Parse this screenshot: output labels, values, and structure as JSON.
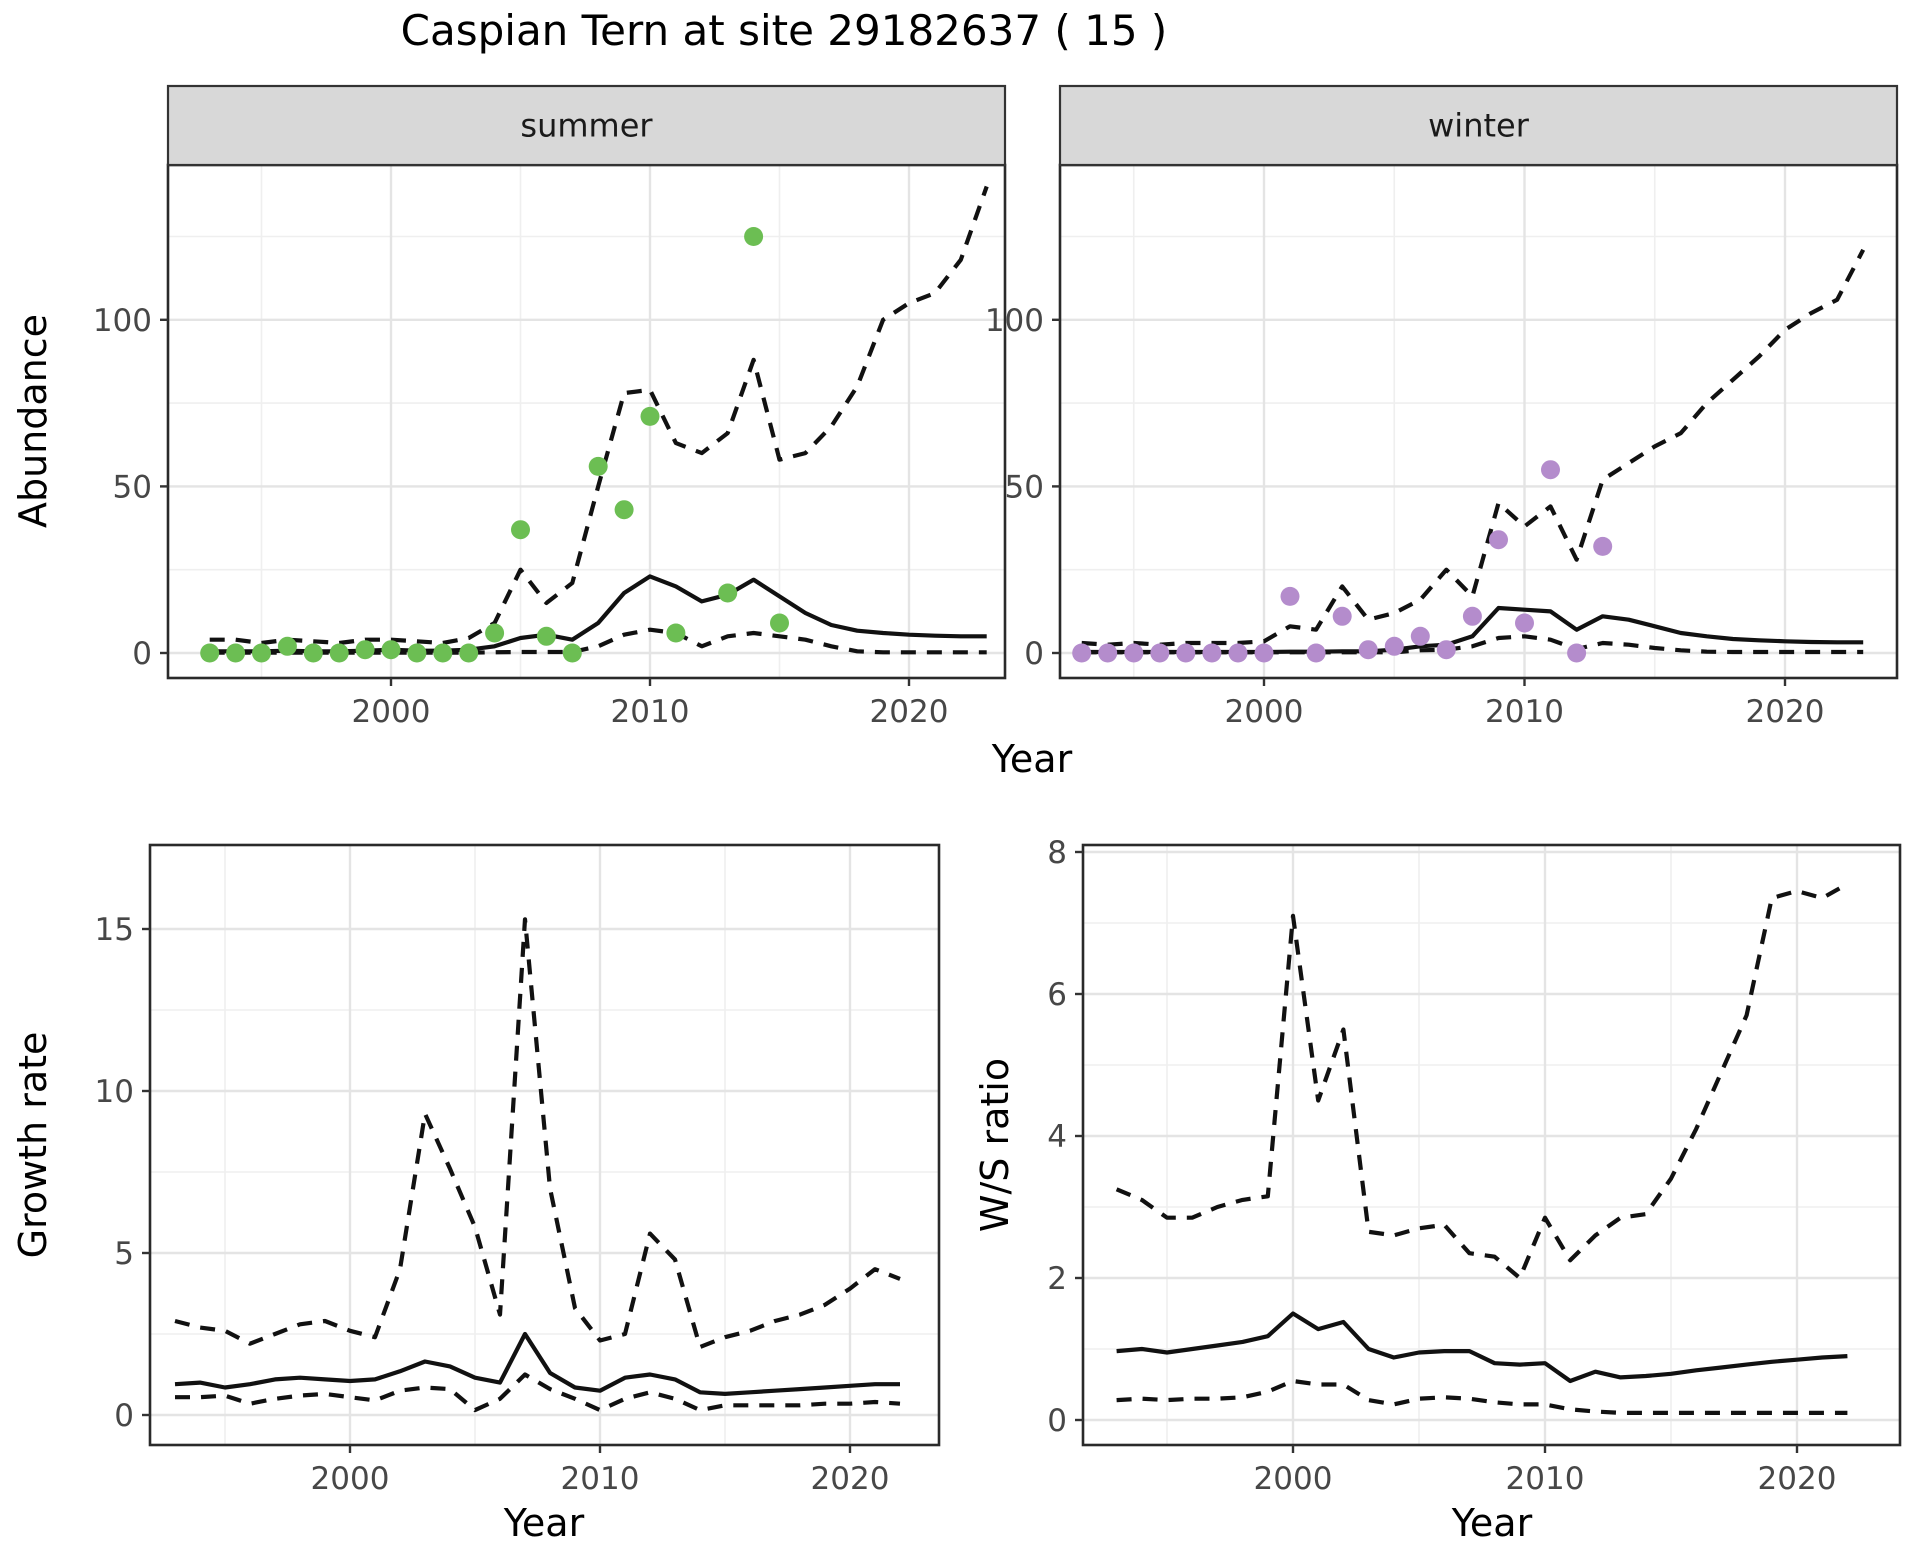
{
  "title": "Caspian Tern at site 29182637 ( 15 )",
  "axes": {
    "abundance_label": "Abundance",
    "growth_label": "Growth rate",
    "ws_label": "W/S ratio",
    "year_label": "Year"
  },
  "colors": {
    "summer_points": "#6CBE53",
    "winter_points": "#B48CCC",
    "line": "#111111",
    "grid_major": "#E4E4E4",
    "grid_minor": "#EFEFEF",
    "strip_fill": "#D8D8D8",
    "strip_border": "#333333",
    "panel_border": "#2A2A2A",
    "tick_text": "#474747",
    "panel_bg": "#FFFFFF"
  },
  "chart_data": [
    {
      "id": "abundance-summer",
      "type": "line",
      "facet_label": "summer",
      "ylabel": "Abundance",
      "xlabel": "Year",
      "xlim": [
        1992,
        2024
      ],
      "ylim": [
        0,
        146
      ],
      "grid": true,
      "x": [
        1993,
        1994,
        1995,
        1996,
        1997,
        1998,
        1999,
        2000,
        2001,
        2002,
        2003,
        2004,
        2005,
        2006,
        2007,
        2008,
        2009,
        2010,
        2011,
        2012,
        2013,
        2014,
        2015,
        2016,
        2017,
        2018,
        2019,
        2020,
        2021,
        2022,
        2023
      ],
      "series": [
        {
          "name": "upper-interval",
          "style": "dashed",
          "values": [
            4,
            4,
            3,
            4,
            3.5,
            3,
            4,
            4,
            3.5,
            3,
            4.5,
            9,
            25,
            15,
            21,
            50,
            78,
            79,
            63,
            60,
            66,
            88,
            58,
            60,
            68,
            80,
            100,
            105,
            108,
            118,
            140
          ]
        },
        {
          "name": "median",
          "style": "solid",
          "values": [
            0.5,
            0.5,
            0.5,
            0.7,
            0.5,
            0.5,
            0.7,
            1,
            0.7,
            0.7,
            1,
            2,
            4.5,
            5.5,
            4,
            9,
            18,
            23,
            20,
            15.5,
            17.5,
            22,
            17,
            12,
            8.4,
            6.7,
            6,
            5.5,
            5.2,
            5,
            5
          ]
        },
        {
          "name": "lower-interval",
          "style": "dashed",
          "values": [
            0.1,
            0.1,
            0.1,
            0.1,
            0.1,
            0.1,
            0.1,
            0.1,
            0.1,
            0.1,
            0.1,
            0.2,
            0.3,
            0.3,
            0.3,
            2,
            5.5,
            7,
            6,
            2,
            5,
            6,
            5,
            4,
            2,
            0.5,
            0.2,
            0.2,
            0.2,
            0.2,
            0.2
          ]
        }
      ],
      "points": {
        "name": "observed-counts-summer",
        "color_key": "summer_points",
        "data": [
          [
            1993,
            0
          ],
          [
            1994,
            0
          ],
          [
            1995,
            0
          ],
          [
            1996,
            2
          ],
          [
            1997,
            0
          ],
          [
            1998,
            0
          ],
          [
            1999,
            1
          ],
          [
            2000,
            1
          ],
          [
            2001,
            0
          ],
          [
            2002,
            0
          ],
          [
            2003,
            0
          ],
          [
            2004,
            6
          ],
          [
            2005,
            37
          ],
          [
            2006,
            5
          ],
          [
            2007,
            0
          ],
          [
            2008,
            56
          ],
          [
            2009,
            43
          ],
          [
            2010,
            71
          ],
          [
            2011,
            6
          ],
          [
            2013,
            18
          ],
          [
            2014,
            125
          ],
          [
            2015,
            9
          ]
        ]
      },
      "x_ticks": {
        "major": [
          2000,
          2010,
          2020
        ],
        "labels": [
          "2000",
          "2010",
          "2020"
        ],
        "minor": [
          1995,
          2005,
          2015
        ]
      },
      "y_ticks": {
        "major": [
          0,
          50,
          100
        ],
        "labels": [
          "0",
          "50",
          "100"
        ],
        "minor": [
          25,
          75,
          125
        ]
      }
    },
    {
      "id": "abundance-winter",
      "type": "line",
      "facet_label": "winter",
      "ylabel": "Abundance",
      "xlabel": "Year",
      "xlim": [
        1992,
        2024
      ],
      "ylim": [
        0,
        146
      ],
      "grid": true,
      "x": [
        1993,
        1994,
        1995,
        1996,
        1997,
        1998,
        1999,
        2000,
        2001,
        2002,
        2003,
        2004,
        2005,
        2006,
        2007,
        2008,
        2009,
        2010,
        2011,
        2012,
        2013,
        2014,
        2015,
        2016,
        2017,
        2018,
        2019,
        2020,
        2021,
        2022,
        2023
      ],
      "series": [
        {
          "name": "upper-interval",
          "style": "dashed",
          "values": [
            3,
            2.5,
            3,
            2.5,
            3,
            3,
            3,
            3.5,
            8,
            7,
            20,
            10,
            12,
            16,
            25,
            17,
            45,
            38,
            44,
            28,
            52,
            57,
            62,
            66,
            75,
            82,
            89,
            97,
            102,
            106,
            121
          ]
        },
        {
          "name": "median",
          "style": "solid",
          "values": [
            0.3,
            0.3,
            0.3,
            0.3,
            0.3,
            0.3,
            0.3,
            0.3,
            0.4,
            0.4,
            0.5,
            0.5,
            1,
            2,
            2.5,
            5,
            13.5,
            13,
            12.5,
            7,
            11,
            10,
            8,
            6,
            5,
            4.2,
            3.8,
            3.5,
            3.3,
            3.2,
            3.2
          ]
        },
        {
          "name": "lower-interval",
          "style": "dashed",
          "values": [
            0.2,
            0.2,
            0.2,
            0.2,
            0.2,
            0.2,
            0.2,
            0.2,
            0.2,
            0.2,
            0.2,
            0.2,
            0.2,
            0.8,
            1,
            2,
            4.5,
            5,
            4,
            1.2,
            3,
            2.5,
            1.5,
            0.8,
            0.4,
            0.3,
            0.3,
            0.3,
            0.3,
            0.3,
            0.3
          ]
        }
      ],
      "points": {
        "name": "observed-counts-winter",
        "color_key": "winter_points",
        "data": [
          [
            1993,
            0
          ],
          [
            1994,
            0
          ],
          [
            1995,
            0
          ],
          [
            1996,
            0
          ],
          [
            1997,
            0
          ],
          [
            1998,
            0
          ],
          [
            1999,
            0
          ],
          [
            2000,
            0
          ],
          [
            2001,
            17
          ],
          [
            2002,
            0
          ],
          [
            2003,
            11
          ],
          [
            2004,
            1
          ],
          [
            2005,
            2
          ],
          [
            2006,
            5
          ],
          [
            2007,
            1
          ],
          [
            2008,
            11
          ],
          [
            2009,
            34
          ],
          [
            2010,
            9
          ],
          [
            2011,
            55
          ],
          [
            2012,
            0
          ],
          [
            2013,
            32
          ]
        ]
      },
      "x_ticks": {
        "major": [
          2000,
          2010,
          2020
        ],
        "labels": [
          "2000",
          "2010",
          "2020"
        ],
        "minor": [
          1995,
          2005,
          2015
        ]
      },
      "y_ticks": {
        "major": [
          0,
          50,
          100
        ],
        "labels": [
          "0",
          "50",
          "100"
        ],
        "minor": [
          25,
          75,
          125
        ]
      }
    },
    {
      "id": "growth-rate",
      "type": "line",
      "facet_label": "",
      "ylabel": "Growth rate",
      "xlabel": "Year",
      "xlim": [
        1992,
        2024
      ],
      "ylim": [
        0,
        17.5
      ],
      "grid": true,
      "x": [
        1993,
        1994,
        1995,
        1996,
        1997,
        1998,
        1999,
        2000,
        2001,
        2002,
        2003,
        2004,
        2005,
        2006,
        2007,
        2008,
        2009,
        2010,
        2011,
        2012,
        2013,
        2014,
        2015,
        2016,
        2017,
        2018,
        2019,
        2020,
        2021,
        2022
      ],
      "series": [
        {
          "name": "upper-interval",
          "style": "dashed",
          "values": [
            2.9,
            2.7,
            2.6,
            2.2,
            2.5,
            2.8,
            2.9,
            2.6,
            2.4,
            4.5,
            9.3,
            7.6,
            5.8,
            3.1,
            15.3,
            7,
            3.3,
            2.3,
            2.5,
            5.6,
            4.8,
            2.1,
            2.4,
            2.6,
            2.9,
            3.1,
            3.4,
            3.9,
            4.5,
            4.2
          ]
        },
        {
          "name": "median",
          "style": "solid",
          "values": [
            0.95,
            1,
            0.85,
            0.95,
            1.1,
            1.15,
            1.1,
            1.05,
            1.1,
            1.35,
            1.65,
            1.5,
            1.15,
            1,
            2.5,
            1.3,
            0.85,
            0.75,
            1.15,
            1.25,
            1.1,
            0.7,
            0.65,
            0.7,
            0.75,
            0.8,
            0.85,
            0.9,
            0.95,
            0.95
          ]
        },
        {
          "name": "lower-interval",
          "style": "dashed",
          "values": [
            0.55,
            0.55,
            0.6,
            0.35,
            0.5,
            0.6,
            0.65,
            0.55,
            0.45,
            0.75,
            0.85,
            0.8,
            0.15,
            0.5,
            1.25,
            0.8,
            0.5,
            0.15,
            0.5,
            0.7,
            0.5,
            0.15,
            0.3,
            0.3,
            0.3,
            0.3,
            0.35,
            0.35,
            0.4,
            0.35
          ]
        }
      ],
      "points": null,
      "x_ticks": {
        "major": [
          2000,
          2010,
          2020
        ],
        "labels": [
          "2000",
          "2010",
          "2020"
        ],
        "minor": [
          1995,
          2005,
          2015,
          2025
        ]
      },
      "y_ticks": {
        "major": [
          0,
          5,
          10,
          15
        ],
        "labels": [
          "0",
          "5",
          "10",
          "15"
        ],
        "minor": [
          2.5,
          7.5,
          12.5
        ]
      }
    },
    {
      "id": "ws-ratio",
      "type": "line",
      "facet_label": "",
      "ylabel": "W/S ratio",
      "xlabel": "Year",
      "xlim": [
        1992,
        2024
      ],
      "ylim": [
        0,
        8.1
      ],
      "grid": true,
      "x": [
        1993,
        1994,
        1995,
        1996,
        1997,
        1998,
        1999,
        2000,
        2001,
        2002,
        2003,
        2004,
        2005,
        2006,
        2007,
        2008,
        2009,
        2010,
        2011,
        2012,
        2013,
        2014,
        2015,
        2016,
        2017,
        2018,
        2019,
        2020,
        2021,
        2022
      ],
      "series": [
        {
          "name": "upper-interval",
          "style": "dashed",
          "values": [
            3.25,
            3.1,
            2.85,
            2.85,
            3,
            3.1,
            3.15,
            7.1,
            4.5,
            5.5,
            2.65,
            2.6,
            2.7,
            2.75,
            2.35,
            2.3,
            2,
            2.85,
            2.25,
            2.6,
            2.85,
            2.9,
            3.4,
            4.1,
            4.9,
            5.7,
            7.35,
            7.45,
            7.35,
            7.55
          ]
        },
        {
          "name": "median",
          "style": "solid",
          "values": [
            0.97,
            1,
            0.95,
            1,
            1.05,
            1.1,
            1.18,
            1.5,
            1.28,
            1.38,
            1,
            0.88,
            0.95,
            0.97,
            0.97,
            0.8,
            0.78,
            0.8,
            0.55,
            0.68,
            0.6,
            0.62,
            0.65,
            0.7,
            0.74,
            0.78,
            0.82,
            0.85,
            0.88,
            0.9
          ]
        },
        {
          "name": "lower-interval",
          "style": "dashed",
          "values": [
            0.28,
            0.3,
            0.28,
            0.3,
            0.3,
            0.32,
            0.4,
            0.55,
            0.5,
            0.5,
            0.28,
            0.22,
            0.3,
            0.32,
            0.3,
            0.25,
            0.22,
            0.22,
            0.15,
            0.12,
            0.1,
            0.1,
            0.1,
            0.1,
            0.1,
            0.1,
            0.1,
            0.1,
            0.1,
            0.1
          ]
        }
      ],
      "points": null,
      "x_ticks": {
        "major": [
          2000,
          2010,
          2020
        ],
        "labels": [
          "2000",
          "2010",
          "2020"
        ],
        "minor": [
          1995,
          2005,
          2015
        ]
      },
      "y_ticks": {
        "major": [
          0,
          2,
          4,
          6,
          8
        ],
        "labels": [
          "0",
          "2",
          "4",
          "6",
          "8"
        ],
        "minor": [
          1,
          3,
          5,
          7
        ]
      }
    }
  ]
}
